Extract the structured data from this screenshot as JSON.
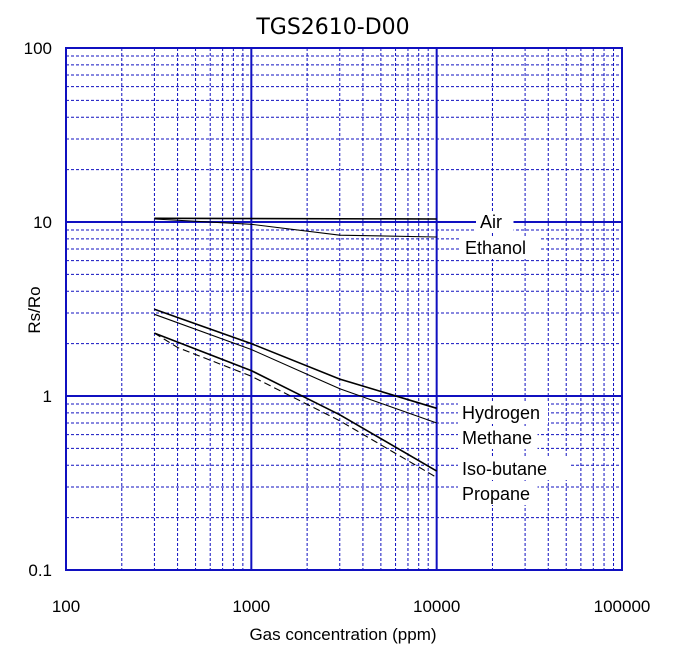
{
  "chart_data": {
    "type": "line",
    "title": "TGS2610-D00",
    "xlabel": "Gas concentration (ppm)",
    "ylabel": "Rs/Ro",
    "x_scale": "log",
    "y_scale": "log",
    "xlim": [
      100,
      100000
    ],
    "ylim": [
      0.1,
      100
    ],
    "x_ticks": [
      "100",
      "1000",
      "10000",
      "100000"
    ],
    "y_ticks": [
      "0.1",
      "1",
      "10",
      "100"
    ],
    "grid": true,
    "colors": {
      "grid": "#1010c0",
      "line": "#000000"
    },
    "series": [
      {
        "name": "Air",
        "x": [
          300,
          10000
        ],
        "y": [
          10.5,
          10.4
        ]
      },
      {
        "name": "Ethanol",
        "x": [
          300,
          1000,
          3000,
          10000
        ],
        "y": [
          10.4,
          9.7,
          8.4,
          8.2
        ]
      },
      {
        "name": "Hydrogen",
        "x": [
          300,
          1000,
          3000,
          10000
        ],
        "y": [
          3.15,
          2.0,
          1.25,
          0.85
        ]
      },
      {
        "name": "Methane",
        "x": [
          300,
          1000,
          3000,
          10000
        ],
        "y": [
          2.95,
          1.85,
          1.1,
          0.7
        ]
      },
      {
        "name": "Iso-butane",
        "x": [
          300,
          1000,
          3000,
          10000
        ],
        "y": [
          2.3,
          1.4,
          0.78,
          0.37
        ],
        "dash": false
      },
      {
        "name": "Propane",
        "x": [
          300,
          400,
          1000,
          3000,
          10000
        ],
        "y": [
          2.3,
          1.9,
          1.3,
          0.72,
          0.34
        ],
        "dash": true
      }
    ],
    "legend": [
      {
        "label": "Air",
        "series": "Air"
      },
      {
        "label": "Ethanol",
        "series": "Ethanol"
      },
      {
        "label": "Hydrogen",
        "series": "Hydrogen"
      },
      {
        "label": "Methane",
        "series": "Methane"
      },
      {
        "label": "Iso-butane",
        "series": "Iso-butane"
      },
      {
        "label": "Propane",
        "series": "Propane"
      }
    ]
  }
}
